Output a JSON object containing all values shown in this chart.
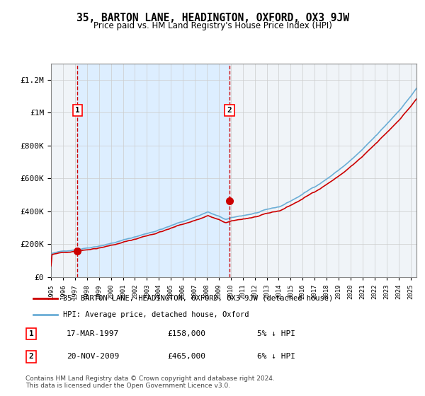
{
  "title": "35, BARTON LANE, HEADINGTON, OXFORD, OX3 9JW",
  "subtitle": "Price paid vs. HM Land Registry's House Price Index (HPI)",
  "x_start_year": 1995,
  "x_end_year": 2025,
  "y_min": 0,
  "y_max": 1300000,
  "y_ticks": [
    0,
    200000,
    400000,
    600000,
    800000,
    1000000,
    1200000
  ],
  "y_tick_labels": [
    "£0",
    "£200K",
    "£400K",
    "£600K",
    "£800K",
    "£1M",
    "£1.2M"
  ],
  "sale1_year": 1997.2,
  "sale1_price": 158000,
  "sale1_label": "1",
  "sale2_year": 2009.9,
  "sale2_price": 465000,
  "sale2_label": "2",
  "hpi_line_color": "#6baed6",
  "price_line_color": "#cc0000",
  "sale_dot_color": "#cc0000",
  "vline_color": "#cc0000",
  "bg_shade_color": "#ddeeff",
  "legend_line1": "35, BARTON LANE, HEADINGTON, OXFORD, OX3 9JW (detached house)",
  "legend_line2": "HPI: Average price, detached house, Oxford",
  "table_row1": [
    "1",
    "17-MAR-1997",
    "£158,000",
    "5% ↓ HPI"
  ],
  "table_row2": [
    "2",
    "20-NOV-2009",
    "£465,000",
    "6% ↓ HPI"
  ],
  "footer": "Contains HM Land Registry data © Crown copyright and database right 2024.\nThis data is licensed under the Open Government Licence v3.0.",
  "grid_color": "#cccccc",
  "plot_bg_color": "#f0f4f8"
}
